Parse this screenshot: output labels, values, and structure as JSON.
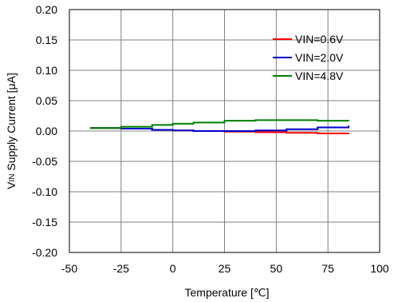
{
  "chart_data": {
    "type": "line",
    "xlabel": "Temperature [℃]",
    "ylabel": "VIN Supply Current [μA]",
    "ylabel_parts": {
      "main": "V",
      "sub": "IN",
      "rest": " Supply Current [μA]"
    },
    "xlim": [
      -50,
      100
    ],
    "ylim": [
      -0.2,
      0.2
    ],
    "xticks": [
      -50,
      -25,
      0,
      25,
      50,
      75,
      100
    ],
    "yticks": [
      -0.2,
      -0.15,
      -0.1,
      -0.05,
      0.0,
      0.05,
      0.1,
      0.15,
      0.2
    ],
    "xtick_labels": [
      "-50",
      "-25",
      "0",
      "25",
      "50",
      "75",
      "100"
    ],
    "ytick_labels": [
      "-0.20",
      "-0.15",
      "-0.10",
      "-0.05",
      "0.00",
      "0.05",
      "0.10",
      "0.15",
      "0.20"
    ],
    "grid": true,
    "legend_position": "top-right",
    "series": [
      {
        "name": "VIN=0.6V",
        "color": "#ff0000",
        "x": [
          -40,
          -25,
          -10,
          0,
          10,
          25,
          40,
          55,
          70,
          85
        ],
        "y": [
          0.005,
          0.004,
          0.002,
          0.001,
          0.0,
          -0.001,
          -0.002,
          -0.003,
          -0.004,
          -0.005
        ]
      },
      {
        "name": "VIN=2.0V",
        "color": "#0000cc",
        "x": [
          -40,
          -25,
          -10,
          0,
          10,
          25,
          40,
          55,
          70,
          85
        ],
        "y": [
          0.005,
          0.004,
          0.002,
          0.001,
          0.0,
          0.0,
          0.001,
          0.003,
          0.006,
          0.009
        ]
      },
      {
        "name": "VIN=4.8V",
        "color": "#008000",
        "x": [
          -40,
          -25,
          -10,
          0,
          10,
          25,
          40,
          55,
          70,
          85
        ],
        "y": [
          0.005,
          0.007,
          0.01,
          0.012,
          0.014,
          0.017,
          0.018,
          0.018,
          0.017,
          0.016
        ]
      }
    ]
  }
}
